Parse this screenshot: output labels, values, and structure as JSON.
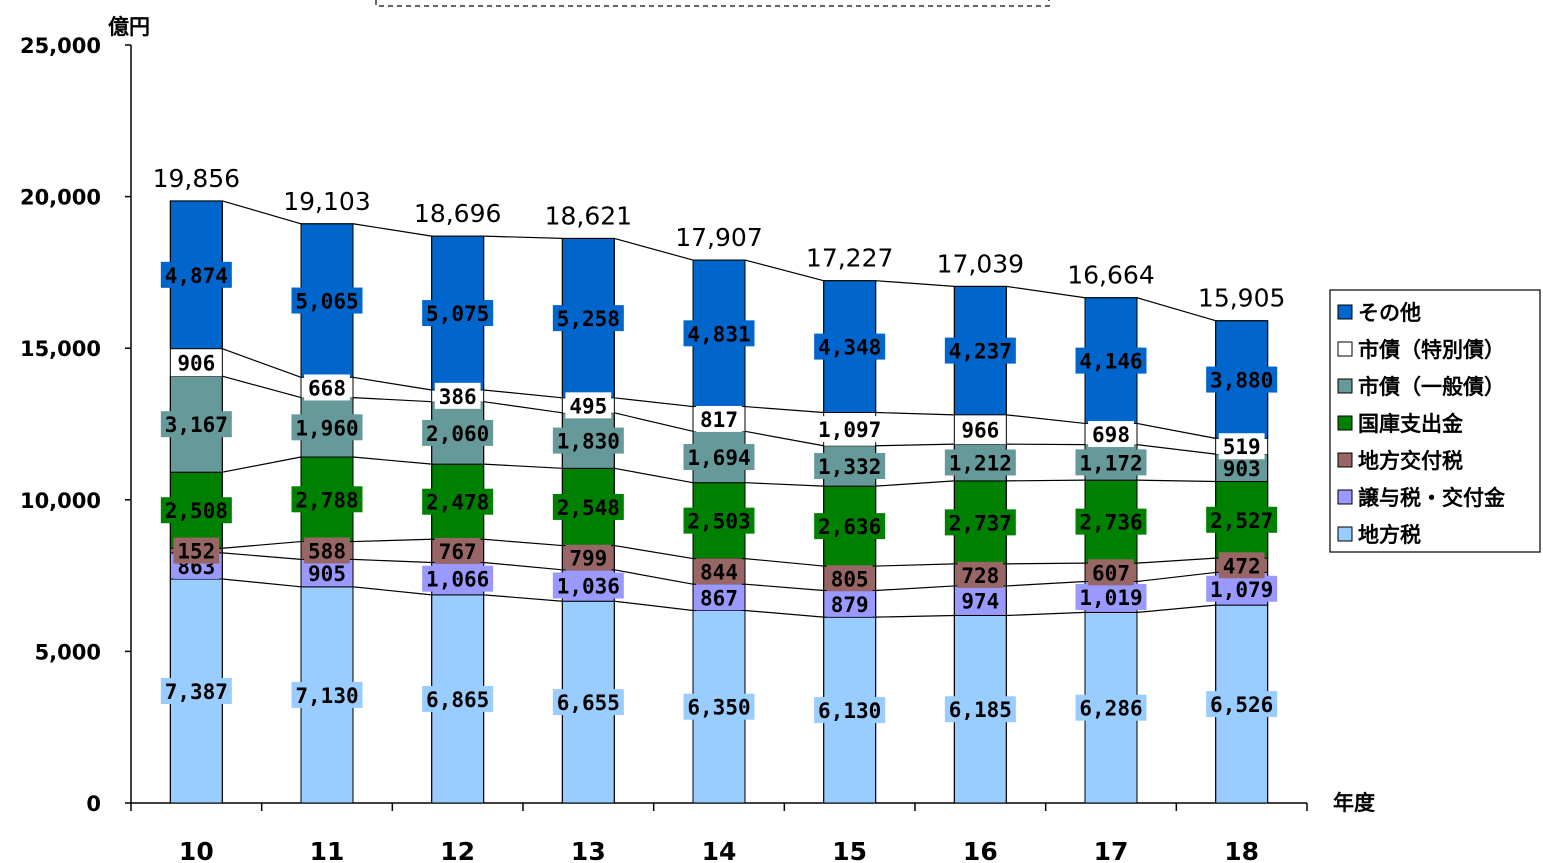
{
  "chart_data": {
    "type": "bar",
    "stacked": true,
    "ylabel": "億円",
    "xlabel": "年度",
    "ylim": [
      0,
      25000
    ],
    "ytick_labels": [
      "0",
      "5,000",
      "10,000",
      "15,000",
      "20,000",
      "25,000"
    ],
    "categories": [
      "10",
      "11",
      "12",
      "13",
      "14",
      "15",
      "16",
      "17",
      "18"
    ],
    "series": [
      {
        "name": "地方税",
        "color": "#99ccff",
        "values": [
          7387,
          7130,
          6865,
          6655,
          6350,
          6130,
          6185,
          6286,
          6526
        ],
        "labels": [
          "7,387",
          "7,130",
          "6,865",
          "6,655",
          "6,350",
          "6,130",
          "6,185",
          "6,286",
          "6,526"
        ]
      },
      {
        "name": "譲与税・交付金",
        "color": "#9999ff",
        "values": [
          863,
          905,
          1066,
          1036,
          867,
          879,
          974,
          1019,
          1079
        ],
        "labels": [
          "863",
          "905",
          "1,066",
          "1,036",
          "867",
          "879",
          "974",
          "1,019",
          "1,079"
        ]
      },
      {
        "name": "地方交付税",
        "color": "#996666",
        "values": [
          152,
          588,
          767,
          799,
          844,
          805,
          728,
          607,
          472
        ],
        "labels": [
          "152",
          "588",
          "767",
          "799",
          "844",
          "805",
          "728",
          "607",
          "472"
        ]
      },
      {
        "name": "国庫支出金",
        "color": "#008000",
        "values": [
          2508,
          2788,
          2478,
          2548,
          2503,
          2636,
          2737,
          2736,
          2527
        ],
        "labels": [
          "2,508",
          "2,788",
          "2,478",
          "2,548",
          "2,503",
          "2,636",
          "2,737",
          "2,736",
          "2,527"
        ]
      },
      {
        "name": "市債（一般債）",
        "color": "#669999",
        "values": [
          3167,
          1960,
          2060,
          1830,
          1694,
          1332,
          1212,
          1172,
          903
        ],
        "labels": [
          "3,167",
          "1,960",
          "2,060",
          "1,830",
          "1,694",
          "1,332",
          "1,212",
          "1,172",
          "903"
        ]
      },
      {
        "name": "市債（特別債）",
        "color": "#ffffff",
        "values": [
          906,
          668,
          386,
          495,
          817,
          1097,
          966,
          698,
          519
        ],
        "labels": [
          "906",
          "668",
          "386",
          "495",
          "817",
          "1,097",
          "966",
          "698",
          "519"
        ]
      },
      {
        "name": "その他",
        "color": "#0066cc",
        "values": [
          4874,
          5065,
          5075,
          5258,
          4831,
          4348,
          4237,
          4146,
          3880
        ],
        "labels": [
          "4,874",
          "5,065",
          "5,075",
          "5,258",
          "4,831",
          "4,348",
          "4,237",
          "4,146",
          "3,880"
        ]
      }
    ],
    "totals": [
      "19,856",
      "19,103",
      "18,696",
      "18,621",
      "17,907",
      "17,227",
      "17,039",
      "16,664",
      "15,905"
    ],
    "legend_order": [
      "その他",
      "市債（特別債）",
      "市債（一般債）",
      "国庫支出金",
      "地方交付税",
      "譲与税・交付金",
      "地方税"
    ],
    "legend_position": "right"
  }
}
